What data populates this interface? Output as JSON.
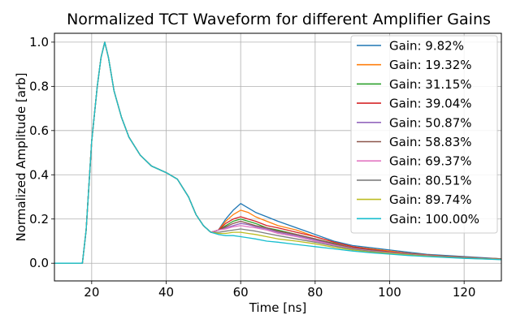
{
  "chart_data": {
    "type": "line",
    "title": "Normalized TCT Waveform for different Amplifier Gains",
    "xlabel": "Time [ns]",
    "ylabel": "Normalized Amplitude [arb]",
    "xlim": [
      10,
      130
    ],
    "ylim": [
      -0.08,
      1.04
    ],
    "xticks": [
      20,
      40,
      60,
      80,
      100,
      120
    ],
    "yticks": [
      0.0,
      0.2,
      0.4,
      0.6,
      0.8,
      1.0
    ],
    "xtick_labels": [
      "20",
      "40",
      "60",
      "80",
      "100",
      "120"
    ],
    "ytick_labels": [
      "0.0",
      "0.2",
      "0.4",
      "0.6",
      "0.8",
      "1.0"
    ],
    "grid": true,
    "legend_position": "top-right",
    "x": [
      10,
      14,
      17.5,
      18.5,
      20,
      21.5,
      22.5,
      23.5,
      24.5,
      26,
      28,
      30,
      33,
      36,
      40,
      43,
      46,
      48,
      50,
      52,
      54,
      56,
      58,
      60,
      62,
      64,
      67,
      70,
      75,
      80,
      85,
      90,
      95,
      100,
      105,
      110,
      115,
      120,
      125,
      130
    ],
    "series": [
      {
        "name": "Gain: 9.82%",
        "color": "#1f77b4",
        "values": [
          0.0,
          0.0,
          0.0,
          0.15,
          0.55,
          0.8,
          0.93,
          1.0,
          0.93,
          0.78,
          0.66,
          0.57,
          0.49,
          0.44,
          0.41,
          0.38,
          0.3,
          0.22,
          0.17,
          0.14,
          0.15,
          0.2,
          0.24,
          0.27,
          0.25,
          0.23,
          0.21,
          0.19,
          0.16,
          0.13,
          0.1,
          0.08,
          0.07,
          0.06,
          0.05,
          0.04,
          0.035,
          0.03,
          0.025,
          0.02
        ]
      },
      {
        "name": "Gain: 19.32%",
        "color": "#ff7f0e",
        "values": [
          0.0,
          0.0,
          0.0,
          0.15,
          0.55,
          0.8,
          0.93,
          1.0,
          0.93,
          0.78,
          0.66,
          0.57,
          0.49,
          0.44,
          0.41,
          0.38,
          0.3,
          0.22,
          0.17,
          0.14,
          0.15,
          0.19,
          0.22,
          0.24,
          0.23,
          0.21,
          0.19,
          0.17,
          0.15,
          0.12,
          0.095,
          0.075,
          0.065,
          0.055,
          0.045,
          0.038,
          0.032,
          0.028,
          0.023,
          0.02
        ]
      },
      {
        "name": "Gain: 31.15%",
        "color": "#2ca02c",
        "values": [
          0.0,
          0.0,
          0.0,
          0.15,
          0.55,
          0.8,
          0.93,
          1.0,
          0.93,
          0.78,
          0.66,
          0.57,
          0.49,
          0.44,
          0.41,
          0.38,
          0.3,
          0.22,
          0.17,
          0.14,
          0.15,
          0.17,
          0.19,
          0.2,
          0.19,
          0.18,
          0.16,
          0.15,
          0.13,
          0.11,
          0.09,
          0.07,
          0.06,
          0.05,
          0.042,
          0.036,
          0.03,
          0.026,
          0.022,
          0.02
        ]
      },
      {
        "name": "Gain: 39.04%",
        "color": "#d62728",
        "values": [
          0.0,
          0.0,
          0.0,
          0.15,
          0.55,
          0.8,
          0.93,
          1.0,
          0.93,
          0.78,
          0.66,
          0.57,
          0.49,
          0.44,
          0.41,
          0.38,
          0.3,
          0.22,
          0.17,
          0.14,
          0.15,
          0.18,
          0.2,
          0.21,
          0.2,
          0.19,
          0.17,
          0.16,
          0.14,
          0.12,
          0.095,
          0.075,
          0.062,
          0.052,
          0.044,
          0.037,
          0.031,
          0.027,
          0.023,
          0.02
        ]
      },
      {
        "name": "Gain: 50.87%",
        "color": "#9467bd",
        "values": [
          0.0,
          0.0,
          0.0,
          0.15,
          0.55,
          0.8,
          0.93,
          1.0,
          0.93,
          0.78,
          0.66,
          0.57,
          0.49,
          0.44,
          0.41,
          0.38,
          0.3,
          0.22,
          0.17,
          0.14,
          0.15,
          0.16,
          0.17,
          0.18,
          0.175,
          0.165,
          0.155,
          0.14,
          0.125,
          0.105,
          0.085,
          0.068,
          0.058,
          0.05,
          0.042,
          0.036,
          0.03,
          0.026,
          0.022,
          0.02
        ]
      },
      {
        "name": "Gain: 58.83%",
        "color": "#8c564b",
        "values": [
          0.0,
          0.0,
          0.0,
          0.15,
          0.55,
          0.8,
          0.93,
          1.0,
          0.93,
          0.78,
          0.66,
          0.57,
          0.49,
          0.44,
          0.41,
          0.38,
          0.3,
          0.22,
          0.17,
          0.14,
          0.15,
          0.165,
          0.18,
          0.19,
          0.18,
          0.17,
          0.16,
          0.145,
          0.13,
          0.11,
          0.088,
          0.07,
          0.06,
          0.05,
          0.043,
          0.036,
          0.03,
          0.026,
          0.022,
          0.02
        ]
      },
      {
        "name": "Gain: 69.37%",
        "color": "#e377c2",
        "values": [
          0.0,
          0.0,
          0.0,
          0.15,
          0.55,
          0.8,
          0.93,
          1.0,
          0.93,
          0.78,
          0.66,
          0.57,
          0.49,
          0.44,
          0.41,
          0.38,
          0.3,
          0.22,
          0.17,
          0.14,
          0.15,
          0.155,
          0.165,
          0.17,
          0.165,
          0.16,
          0.15,
          0.135,
          0.12,
          0.1,
          0.082,
          0.066,
          0.056,
          0.048,
          0.041,
          0.035,
          0.029,
          0.025,
          0.021,
          0.018
        ]
      },
      {
        "name": "Gain: 80.51%",
        "color": "#7f7f7f",
        "values": [
          0.0,
          0.0,
          0.0,
          0.15,
          0.55,
          0.8,
          0.93,
          1.0,
          0.93,
          0.78,
          0.66,
          0.57,
          0.49,
          0.44,
          0.41,
          0.38,
          0.3,
          0.22,
          0.17,
          0.14,
          0.14,
          0.145,
          0.15,
          0.155,
          0.15,
          0.145,
          0.135,
          0.125,
          0.11,
          0.095,
          0.078,
          0.064,
          0.054,
          0.046,
          0.04,
          0.034,
          0.029,
          0.025,
          0.021,
          0.018
        ]
      },
      {
        "name": "Gain: 89.74%",
        "color": "#bcbd22",
        "values": [
          0.0,
          0.0,
          0.0,
          0.15,
          0.55,
          0.8,
          0.93,
          1.0,
          0.93,
          0.78,
          0.66,
          0.57,
          0.49,
          0.44,
          0.41,
          0.38,
          0.3,
          0.22,
          0.17,
          0.14,
          0.135,
          0.135,
          0.14,
          0.14,
          0.135,
          0.13,
          0.12,
          0.11,
          0.1,
          0.088,
          0.072,
          0.06,
          0.05,
          0.044,
          0.038,
          0.032,
          0.027,
          0.023,
          0.02,
          0.017
        ]
      },
      {
        "name": "Gain: 100.00%",
        "color": "#17becf",
        "values": [
          0.0,
          0.0,
          0.0,
          0.15,
          0.55,
          0.8,
          0.93,
          1.0,
          0.93,
          0.78,
          0.66,
          0.57,
          0.49,
          0.44,
          0.41,
          0.38,
          0.3,
          0.22,
          0.17,
          0.14,
          0.13,
          0.125,
          0.125,
          0.12,
          0.115,
          0.11,
          0.1,
          0.095,
          0.085,
          0.075,
          0.065,
          0.055,
          0.047,
          0.041,
          0.035,
          0.03,
          0.026,
          0.022,
          0.019,
          0.016
        ]
      }
    ]
  }
}
